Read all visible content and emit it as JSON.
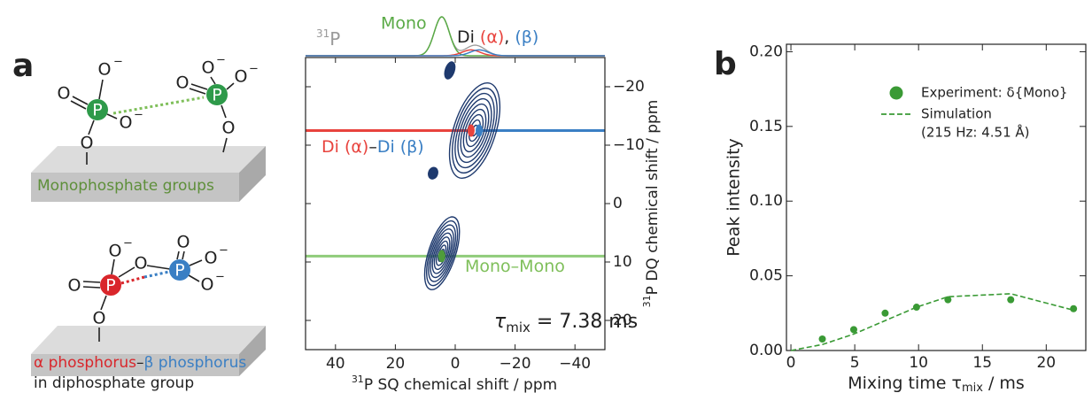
{
  "panel_a": {
    "label": "a",
    "atoms": {
      "P": "P",
      "O": "O",
      "minus": "−"
    },
    "mono_caption": "Monophosphate groups",
    "di_caption": {
      "alpha": "α phosphorus",
      "dash": "–",
      "beta": "β phosphorus",
      "line2": "in diphosphate group"
    }
  },
  "chart_data": [
    {
      "type": "contour",
      "nucleus": {
        "sup": "31",
        "text": "P"
      },
      "x_label": {
        "sup": "31",
        "text": "P SQ chemical shift / ppm"
      },
      "y_label": {
        "sup": "31",
        "text": "P DQ chemical shift / ppm"
      },
      "xlim": [
        50,
        -50
      ],
      "ylim": [
        25,
        -25
      ],
      "xticks": [
        40,
        20,
        0,
        {
          "value": -20,
          "label": "−20"
        },
        {
          "value": -40,
          "label": "−40"
        }
      ],
      "yticks": [
        {
          "value": -20,
          "label": "−20"
        },
        {
          "value": -10,
          "label": "−10"
        },
        0,
        10,
        20
      ],
      "contour_color": "#1f3a6e",
      "peaks": {
        "x": [
          -6.5,
          4.4,
          1.8,
          7.4
        ],
        "y": [
          -12.5,
          8.5,
          -22.8,
          -5.2
        ],
        "x_width": [
          14,
          9,
          3,
          3
        ],
        "y_width": [
          17,
          13,
          3,
          2
        ]
      },
      "projection": {
        "series": [
          {
            "name": "Mono",
            "color": "#5aaa46",
            "center": 4.5,
            "width": 2.5,
            "height": 1
          },
          {
            "name": "(α)",
            "color": "#e8433d",
            "center": -5.3,
            "width": 3,
            "height": 0.15
          },
          {
            "name": "(β)",
            "color": "#3a7fc4",
            "center": -8,
            "width": 3,
            "height": 0.15
          }
        ],
        "di_label": "Di",
        "separator": ",",
        "sum_color": "#999999"
      },
      "correlations": [
        {
          "label": [
            {
              "text": "Di (α)",
              "color": "#e8433d"
            },
            {
              "text": "–",
              "color": "#222222"
            },
            {
              "text": "Di (β)",
              "color": "#3a7fc4"
            }
          ],
          "y": -12.5,
          "x": [
            -5.3,
            -8
          ],
          "colors": [
            "#e8433d",
            "#3a7fc4"
          ]
        },
        {
          "label": [
            {
              "text": "Mono–Mono",
              "color": "#7fbf5a"
            }
          ],
          "y": 9,
          "x": [
            4.5
          ],
          "colors": [
            "#8fcc7a"
          ]
        }
      ],
      "annotation": {
        "symbol": "τ",
        "sub": "mix",
        "text": " = 7.38 ms"
      }
    },
    {
      "type": "scatter_line",
      "panel_label": "b",
      "x_label": {
        "text": "Mixing time τ",
        "sub": "mix",
        "unit": " / ms"
      },
      "y_label": "Peak intensity",
      "xlim": [
        -0.35,
        23.1
      ],
      "ylim": [
        0,
        0.205
      ],
      "xticks": [
        0,
        5,
        10,
        15,
        20
      ],
      "yticks": [
        {
          "value": 0,
          "label": "0.00"
        },
        {
          "value": 0.05,
          "label": "0.05"
        },
        {
          "value": 0.1,
          "label": "0.10"
        },
        {
          "value": 0.15,
          "label": "0.15"
        },
        {
          "value": 0.2,
          "label": "0.20"
        }
      ],
      "series": [
        {
          "name": "Experiment: δ{Mono}",
          "color": "#3a9a35",
          "marker": "circle",
          "x": [
            2.46,
            4.92,
            7.38,
            9.84,
            12.3,
            17.22,
            22.14
          ],
          "values": [
            0.0077,
            0.014,
            0.025,
            0.029,
            0.034,
            0.034,
            0.028
          ]
        },
        {
          "name": "Simulation",
          "note": "(215 Hz: 4.51 Å)",
          "color": "#3a9a35",
          "style": "dashed",
          "x": [
            0,
            2.46,
            4.92,
            7.38,
            9.84,
            12.3,
            17.22,
            22.14
          ],
          "values": [
            0,
            0.004,
            0.011,
            0.02,
            0.029,
            0.036,
            0.038,
            0.027
          ]
        }
      ]
    }
  ]
}
